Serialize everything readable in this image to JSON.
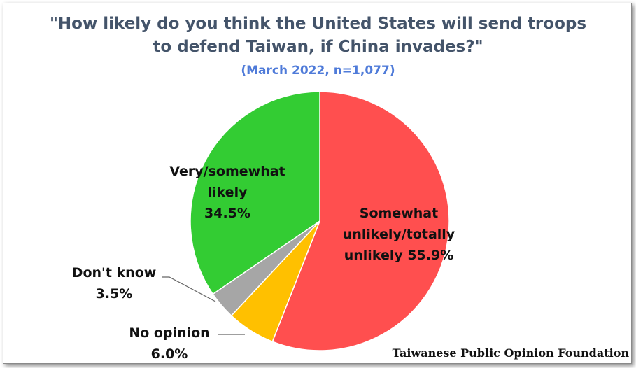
{
  "chart_data": {
    "type": "pie",
    "title": "\"How likely do you think the United States will send troops to defend Taiwan, if China invades?\"",
    "title_lines": [
      "\"How likely do you think the United States will send troops",
      "to defend Taiwan, if China invades?\""
    ],
    "subtitle": "(March 2022, n=1,077)",
    "slices": [
      {
        "label": "Somewhat unlikely/totally unlikely",
        "label_lines": [
          "Somewhat",
          "unlikely/totally",
          "unlikely 55.9%"
        ],
        "value": 55.9,
        "color": "#ff4f4f"
      },
      {
        "label": "No opinion",
        "label_lines": [
          "No opinion",
          "6.0%"
        ],
        "value": 6.0,
        "color": "#ffc000"
      },
      {
        "label": "Don't know",
        "label_lines": [
          "Don't know",
          "3.5%"
        ],
        "value": 3.5,
        "color": "#a6a6a6"
      },
      {
        "label": "Very/somewhat likely",
        "label_lines": [
          "Very/somewhat",
          "likely",
          "34.5%"
        ],
        "value": 34.5,
        "color": "#33cc33"
      }
    ],
    "source": "Taiwanese Public Opinion Foundation"
  }
}
